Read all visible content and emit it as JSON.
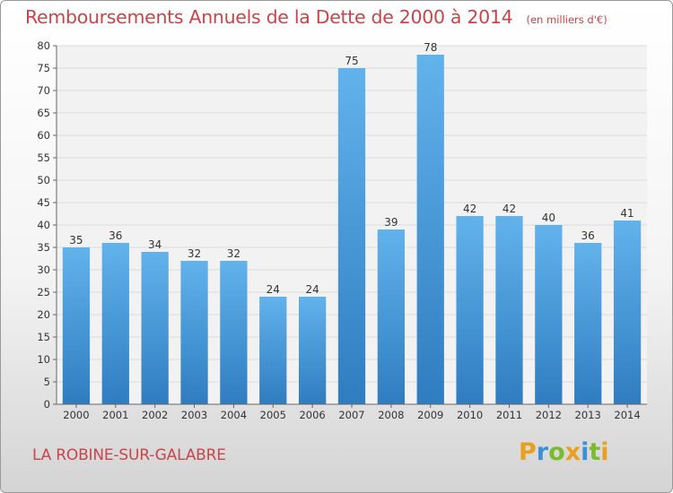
{
  "chart_data": {
    "type": "bar",
    "title": "Remboursements Annuels de la Dette de 2000 à 2014",
    "unit_label": "(en milliers d'€)",
    "categories": [
      "2000",
      "2001",
      "2002",
      "2003",
      "2004",
      "2005",
      "2006",
      "2007",
      "2008",
      "2009",
      "2010",
      "2011",
      "2012",
      "2013",
      "2014"
    ],
    "values": [
      35,
      36,
      34,
      32,
      32,
      24,
      24,
      75,
      39,
      78,
      42,
      42,
      40,
      36,
      41
    ],
    "ylim": [
      0,
      80
    ],
    "ytick_step": 5,
    "xlabel": "",
    "ylabel": "",
    "bar_color": "#4a9ede",
    "grid": true
  },
  "location": "LA ROBINE-SUR-GALABRE",
  "brand": {
    "name": "Proxiti",
    "letters": [
      "P",
      "r",
      "o",
      "x",
      "i",
      "t",
      "i"
    ]
  }
}
